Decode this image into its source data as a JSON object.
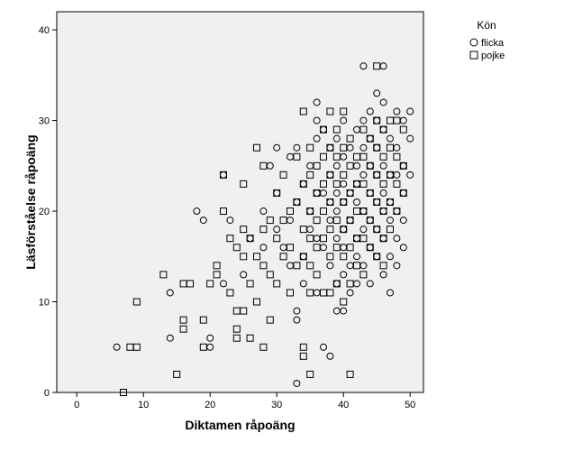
{
  "chart_data": {
    "type": "scatter",
    "xlabel": "Diktamen råpoäng",
    "ylabel": "Läsförståelse råpoäng",
    "xlim": [
      -3,
      52
    ],
    "ylim": [
      0,
      42
    ],
    "xticks": [
      "0",
      "10",
      "20",
      "30",
      "40",
      "50"
    ],
    "yticks": [
      "0",
      "10",
      "20",
      "30",
      "40"
    ],
    "grid": false,
    "legend": {
      "title": "Kön",
      "placement": "top-right",
      "entries": [
        {
          "label": "flicka",
          "marker": "circle"
        },
        {
          "label": "pojke",
          "marker": "square"
        }
      ]
    },
    "colors": {
      "plot_background": "#f0f0f0",
      "marker_stroke": "#000000"
    },
    "series": [
      {
        "name": "flicka",
        "marker": "circle",
        "points": [
          [
            6,
            5
          ],
          [
            14,
            11
          ],
          [
            14,
            6
          ],
          [
            18,
            20
          ],
          [
            19,
            19
          ],
          [
            20,
            6
          ],
          [
            20,
            5
          ],
          [
            22,
            24
          ],
          [
            22,
            12
          ],
          [
            23,
            19
          ],
          [
            25,
            13
          ],
          [
            26,
            17
          ],
          [
            28,
            16
          ],
          [
            28,
            20
          ],
          [
            29,
            25
          ],
          [
            30,
            27
          ],
          [
            30,
            22
          ],
          [
            30,
            18
          ],
          [
            31,
            16
          ],
          [
            32,
            14
          ],
          [
            32,
            19
          ],
          [
            32,
            26
          ],
          [
            33,
            27
          ],
          [
            33,
            21
          ],
          [
            33,
            8
          ],
          [
            33,
            9
          ],
          [
            33,
            1
          ],
          [
            34,
            23
          ],
          [
            34,
            15
          ],
          [
            34,
            12
          ],
          [
            35,
            20
          ],
          [
            35,
            25
          ],
          [
            35,
            18
          ],
          [
            36,
            32
          ],
          [
            36,
            30
          ],
          [
            36,
            28
          ],
          [
            36,
            22
          ],
          [
            36,
            17
          ],
          [
            36,
            11
          ],
          [
            37,
            29
          ],
          [
            37,
            22
          ],
          [
            37,
            16
          ],
          [
            37,
            5
          ],
          [
            38,
            27
          ],
          [
            38,
            24
          ],
          [
            38,
            21
          ],
          [
            38,
            19
          ],
          [
            38,
            14
          ],
          [
            38,
            4
          ],
          [
            39,
            28
          ],
          [
            39,
            25
          ],
          [
            39,
            22
          ],
          [
            39,
            20
          ],
          [
            39,
            17
          ],
          [
            39,
            12
          ],
          [
            39,
            9
          ],
          [
            40,
            30
          ],
          [
            40,
            26
          ],
          [
            40,
            23
          ],
          [
            40,
            21
          ],
          [
            40,
            18
          ],
          [
            40,
            16
          ],
          [
            40,
            13
          ],
          [
            40,
            9
          ],
          [
            41,
            27
          ],
          [
            41,
            22
          ],
          [
            41,
            19
          ],
          [
            41,
            14
          ],
          [
            41,
            11
          ],
          [
            42,
            29
          ],
          [
            42,
            25
          ],
          [
            42,
            23
          ],
          [
            42,
            21
          ],
          [
            42,
            17
          ],
          [
            42,
            15
          ],
          [
            42,
            12
          ],
          [
            43,
            36
          ],
          [
            43,
            30
          ],
          [
            43,
            27
          ],
          [
            43,
            24
          ],
          [
            43,
            20
          ],
          [
            43,
            18
          ],
          [
            43,
            14
          ],
          [
            44,
            31
          ],
          [
            44,
            28
          ],
          [
            44,
            25
          ],
          [
            44,
            22
          ],
          [
            44,
            19
          ],
          [
            44,
            16
          ],
          [
            44,
            12
          ],
          [
            45,
            33
          ],
          [
            45,
            30
          ],
          [
            45,
            27
          ],
          [
            45,
            24
          ],
          [
            45,
            21
          ],
          [
            45,
            18
          ],
          [
            45,
            15
          ],
          [
            46,
            36
          ],
          [
            46,
            32
          ],
          [
            46,
            29
          ],
          [
            46,
            25
          ],
          [
            46,
            22
          ],
          [
            46,
            20
          ],
          [
            46,
            17
          ],
          [
            46,
            13
          ],
          [
            47,
            28
          ],
          [
            47,
            24
          ],
          [
            47,
            21
          ],
          [
            47,
            19
          ],
          [
            47,
            15
          ],
          [
            47,
            11
          ],
          [
            48,
            31
          ],
          [
            48,
            27
          ],
          [
            48,
            24
          ],
          [
            48,
            20
          ],
          [
            48,
            17
          ],
          [
            48,
            14
          ],
          [
            49,
            30
          ],
          [
            49,
            25
          ],
          [
            49,
            22
          ],
          [
            49,
            19
          ],
          [
            49,
            16
          ],
          [
            50,
            31
          ],
          [
            50,
            28
          ],
          [
            50,
            24
          ]
        ]
      },
      {
        "name": "pojke",
        "marker": "square",
        "points": [
          [
            7,
            0
          ],
          [
            8,
            5
          ],
          [
            9,
            5
          ],
          [
            9,
            10
          ],
          [
            13,
            13
          ],
          [
            15,
            2
          ],
          [
            16,
            8
          ],
          [
            16,
            7
          ],
          [
            16,
            12
          ],
          [
            17,
            12
          ],
          [
            19,
            8
          ],
          [
            19,
            5
          ],
          [
            20,
            12
          ],
          [
            21,
            13
          ],
          [
            21,
            14
          ],
          [
            22,
            24
          ],
          [
            22,
            20
          ],
          [
            23,
            17
          ],
          [
            23,
            11
          ],
          [
            24,
            16
          ],
          [
            24,
            9
          ],
          [
            24,
            7
          ],
          [
            24,
            6
          ],
          [
            25,
            23
          ],
          [
            25,
            18
          ],
          [
            25,
            15
          ],
          [
            25,
            9
          ],
          [
            26,
            17
          ],
          [
            26,
            12
          ],
          [
            26,
            6
          ],
          [
            27,
            27
          ],
          [
            27,
            15
          ],
          [
            27,
            10
          ],
          [
            28,
            25
          ],
          [
            28,
            18
          ],
          [
            28,
            14
          ],
          [
            28,
            5
          ],
          [
            29,
            19
          ],
          [
            29,
            13
          ],
          [
            29,
            8
          ],
          [
            30,
            22
          ],
          [
            30,
            17
          ],
          [
            30,
            12
          ],
          [
            31,
            24
          ],
          [
            31,
            19
          ],
          [
            31,
            15
          ],
          [
            32,
            20
          ],
          [
            32,
            16
          ],
          [
            32,
            11
          ],
          [
            33,
            26
          ],
          [
            33,
            21
          ],
          [
            33,
            14
          ],
          [
            34,
            31
          ],
          [
            34,
            23
          ],
          [
            34,
            18
          ],
          [
            34,
            15
          ],
          [
            34,
            5
          ],
          [
            34,
            4
          ],
          [
            35,
            27
          ],
          [
            35,
            24
          ],
          [
            35,
            20
          ],
          [
            35,
            17
          ],
          [
            35,
            14
          ],
          [
            35,
            11
          ],
          [
            35,
            2
          ],
          [
            36,
            25
          ],
          [
            36,
            22
          ],
          [
            36,
            19
          ],
          [
            36,
            16
          ],
          [
            36,
            13
          ],
          [
            37,
            29
          ],
          [
            37,
            26
          ],
          [
            37,
            23
          ],
          [
            37,
            20
          ],
          [
            37,
            17
          ],
          [
            37,
            11
          ],
          [
            38,
            31
          ],
          [
            38,
            27
          ],
          [
            38,
            24
          ],
          [
            38,
            21
          ],
          [
            38,
            18
          ],
          [
            38,
            15
          ],
          [
            38,
            11
          ],
          [
            39,
            29
          ],
          [
            39,
            26
          ],
          [
            39,
            23
          ],
          [
            39,
            19
          ],
          [
            39,
            16
          ],
          [
            39,
            12
          ],
          [
            40,
            31
          ],
          [
            40,
            27
          ],
          [
            40,
            24
          ],
          [
            40,
            21
          ],
          [
            40,
            18
          ],
          [
            40,
            15
          ],
          [
            40,
            10
          ],
          [
            41,
            28
          ],
          [
            41,
            25
          ],
          [
            41,
            22
          ],
          [
            41,
            19
          ],
          [
            41,
            16
          ],
          [
            41,
            12
          ],
          [
            41,
            2
          ],
          [
            42,
            26
          ],
          [
            42,
            23
          ],
          [
            42,
            20
          ],
          [
            42,
            17
          ],
          [
            42,
            14
          ],
          [
            43,
            29
          ],
          [
            43,
            26
          ],
          [
            43,
            23
          ],
          [
            43,
            20
          ],
          [
            43,
            17
          ],
          [
            43,
            13
          ],
          [
            44,
            28
          ],
          [
            44,
            25
          ],
          [
            44,
            22
          ],
          [
            44,
            19
          ],
          [
            44,
            16
          ],
          [
            45,
            36
          ],
          [
            45,
            30
          ],
          [
            45,
            27
          ],
          [
            45,
            24
          ],
          [
            45,
            21
          ],
          [
            45,
            18
          ],
          [
            45,
            15
          ],
          [
            46,
            29
          ],
          [
            46,
            26
          ],
          [
            46,
            23
          ],
          [
            46,
            20
          ],
          [
            46,
            17
          ],
          [
            46,
            14
          ],
          [
            47,
            30
          ],
          [
            47,
            27
          ],
          [
            47,
            24
          ],
          [
            47,
            21
          ],
          [
            47,
            18
          ],
          [
            48,
            30
          ],
          [
            48,
            26
          ],
          [
            48,
            23
          ],
          [
            48,
            20
          ],
          [
            49,
            29
          ],
          [
            49,
            25
          ],
          [
            49,
            22
          ]
        ]
      }
    ]
  }
}
